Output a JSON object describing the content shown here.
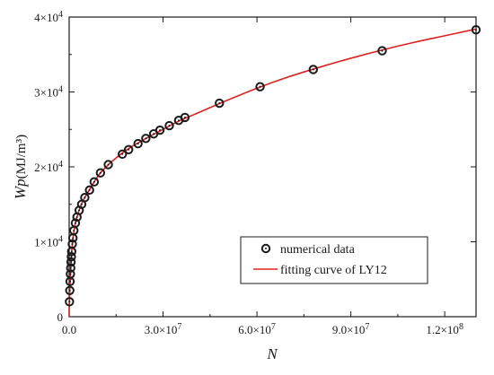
{
  "chart_data": {
    "type": "scatter",
    "xlabel": "N",
    "ylabel": "Wp",
    "ylabel_unit": "(MJ/m³)",
    "xlim": [
      0,
      130000000
    ],
    "ylim": [
      0,
      40000
    ],
    "x_ticks": [
      {
        "value": 0,
        "label": "0.0"
      },
      {
        "value": 30000000,
        "label": "3.0×10",
        "exp": "7"
      },
      {
        "value": 60000000,
        "label": "6.0×10",
        "exp": "7"
      },
      {
        "value": 90000000,
        "label": "9.0×10",
        "exp": "7"
      },
      {
        "value": 120000000,
        "label": "1.2×10",
        "exp": "8"
      }
    ],
    "y_ticks": [
      {
        "value": 0,
        "label": "0"
      },
      {
        "value": 10000,
        "label": "1×10",
        "exp": "4"
      },
      {
        "value": 20000,
        "label": "2×10",
        "exp": "4"
      },
      {
        "value": 30000,
        "label": "3×10",
        "exp": "4"
      },
      {
        "value": 40000,
        "label": "4×10",
        "exp": "4"
      }
    ],
    "legend_position": "bottom-right",
    "series": [
      {
        "name": "numerical data",
        "kind": "markers",
        "color": "#1a1a1a",
        "points": [
          [
            100000,
            2000
          ],
          [
            200000,
            3500
          ],
          [
            300000,
            4700
          ],
          [
            400000,
            5700
          ],
          [
            500000,
            6500
          ],
          [
            600000,
            7300
          ],
          [
            700000,
            8000
          ],
          [
            800000,
            8700
          ],
          [
            1000000,
            9700
          ],
          [
            1200000,
            10500
          ],
          [
            1500000,
            11500
          ],
          [
            2000000,
            12500
          ],
          [
            2500000,
            13300
          ],
          [
            3200000,
            14200
          ],
          [
            4000000,
            15000
          ],
          [
            5000000,
            15900
          ],
          [
            6500000,
            16900
          ],
          [
            8000000,
            18000
          ],
          [
            10000000,
            19200
          ],
          [
            12500000,
            20300
          ],
          [
            17000000,
            21700
          ],
          [
            19000000,
            22300
          ],
          [
            22000000,
            23100
          ],
          [
            24500000,
            23800
          ],
          [
            27000000,
            24400
          ],
          [
            29000000,
            24900
          ],
          [
            32000000,
            25500
          ],
          [
            35000000,
            26200
          ],
          [
            37000000,
            26600
          ],
          [
            48000000,
            28500
          ],
          [
            61000000,
            30700
          ],
          [
            78000000,
            33000
          ],
          [
            100000000,
            35500
          ],
          [
            130000000,
            38300
          ]
        ]
      },
      {
        "name": "fitting curve of LY12",
        "kind": "line",
        "color": "#e02020",
        "points": [
          [
            0,
            0
          ],
          [
            50000,
            1600
          ],
          [
            200000,
            3500
          ],
          [
            500000,
            6400
          ],
          [
            1000000,
            9600
          ],
          [
            2000000,
            12500
          ],
          [
            4000000,
            15100
          ],
          [
            7000000,
            17300
          ],
          [
            10000000,
            19200
          ],
          [
            15000000,
            21200
          ],
          [
            20000000,
            22700
          ],
          [
            25000000,
            23900
          ],
          [
            30000000,
            25000
          ],
          [
            35000000,
            26100
          ],
          [
            40000000,
            27000
          ],
          [
            50000000,
            28800
          ],
          [
            60000000,
            30500
          ],
          [
            70000000,
            32000
          ],
          [
            80000000,
            33300
          ],
          [
            90000000,
            34500
          ],
          [
            100000000,
            35600
          ],
          [
            110000000,
            36600
          ],
          [
            120000000,
            37500
          ],
          [
            130000000,
            38400
          ]
        ]
      }
    ]
  }
}
